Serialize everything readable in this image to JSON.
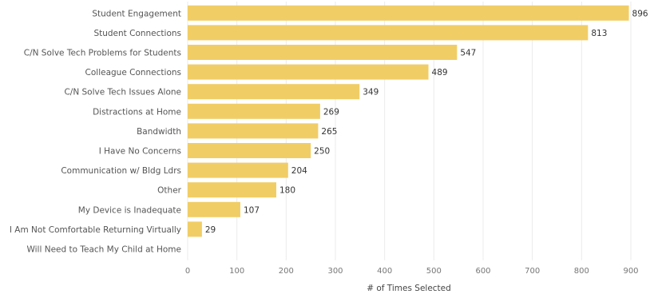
{
  "chart_data": {
    "type": "bar",
    "orientation": "horizontal",
    "categories": [
      "Student Engagement",
      "Student Connections",
      "C/N Solve Tech Problems for Students",
      "Colleague Connections",
      "C/N Solve Tech Issues Alone",
      "Distractions at Home",
      "Bandwidth",
      "I Have No Concerns",
      "Communication w/ Bldg Ldrs",
      "Other",
      "My Device is Inadequate",
      "I Am Not Comfortable Returning Virtually",
      "Will Need to Teach My Child at Home"
    ],
    "values": [
      896,
      813,
      547,
      489,
      349,
      269,
      265,
      250,
      204,
      180,
      107,
      29,
      null
    ],
    "xlabel": "# of Times Selected",
    "ylabel": "",
    "xlim": [
      0,
      900
    ],
    "ticks": [
      "0",
      "100",
      "200",
      "300",
      "400",
      "500",
      "600",
      "700",
      "800",
      "900"
    ],
    "grid": true,
    "bar_color": "#f1cd66"
  }
}
